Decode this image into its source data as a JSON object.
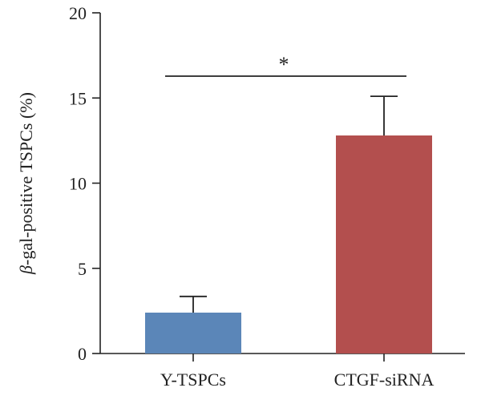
{
  "chart_data": {
    "type": "bar",
    "categories": [
      "Y-TSPCs",
      "CTGF-siRNA"
    ],
    "values": [
      2.4,
      12.8
    ],
    "errors": [
      0.95,
      2.3
    ],
    "colors": [
      "#5b86b8",
      "#b34f4e"
    ],
    "title": "",
    "xlabel": "",
    "ylabel": "β-gal-positive TSPCs (%)",
    "ylabel_symbol": "β",
    "ylabel_rest": "-gal-positive TSPCs (%)",
    "ylim": [
      0,
      20
    ],
    "yticks": [
      0,
      5,
      10,
      15,
      20
    ],
    "grid": false,
    "significance": {
      "between": [
        0,
        1
      ],
      "label": "*"
    }
  }
}
